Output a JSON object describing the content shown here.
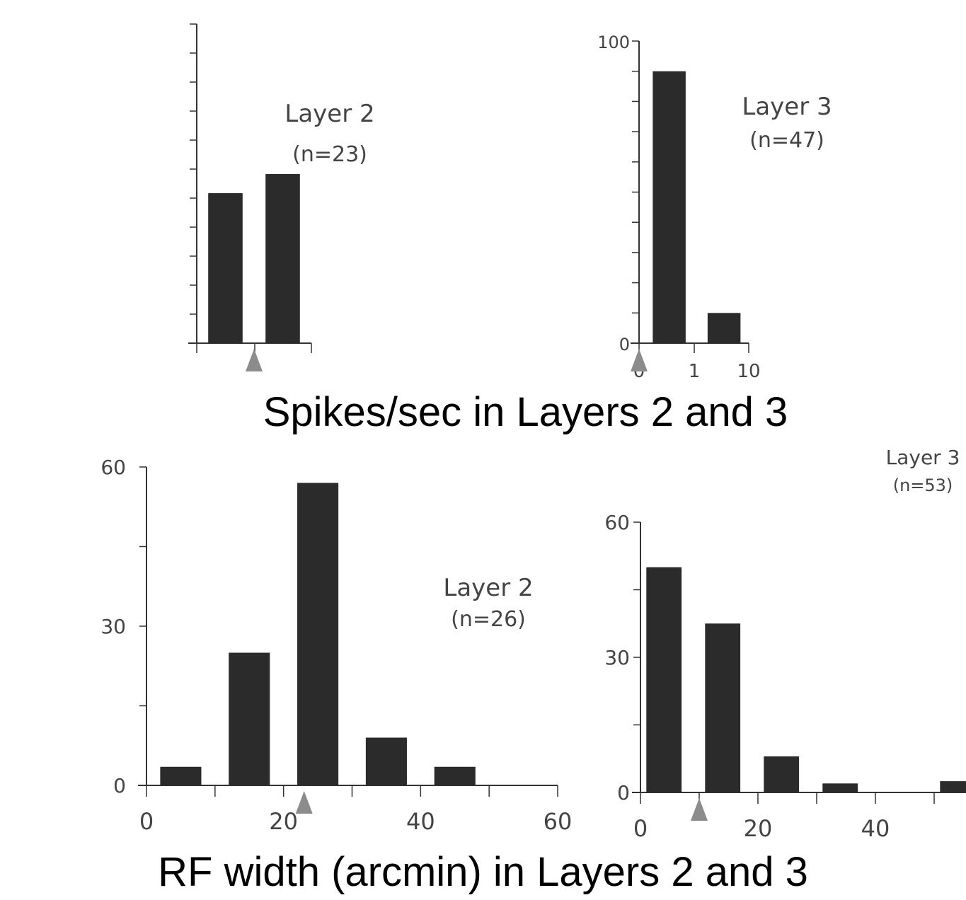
{
  "titles": {
    "top": "Spikes/sec in Layers 2 and 3",
    "bottom": "RF width (arcmin) in Layers 2 and 3"
  },
  "colors": {
    "bar": "#2b2b2b",
    "axis": "#333333",
    "marker": "#8c8c8c",
    "label": "#444444"
  },
  "chart_data": [
    {
      "type": "bar",
      "panel": "top-left",
      "title": "Layer 2",
      "subtitle": "(n=23)",
      "xlabel": "",
      "ylabel": "",
      "ylim": [
        0,
        10
      ],
      "yticks": [],
      "xticks": [],
      "bars": [
        {
          "x0": 0.2,
          "x1": 0.8,
          "value": 4.7
        },
        {
          "x0": 1.2,
          "x1": 1.8,
          "value": 5.3
        }
      ],
      "xlim": [
        0,
        2
      ],
      "marker": 1.0
    },
    {
      "type": "bar",
      "panel": "top-right",
      "title": "Layer 3",
      "subtitle": "(n=47)",
      "xlabel": "",
      "ylabel": "",
      "ylim": [
        0,
        100
      ],
      "yticks": [
        "0",
        "100"
      ],
      "xticks": [
        "0",
        "1",
        "10"
      ],
      "bars": [
        {
          "x0": 0.25,
          "x1": 0.85,
          "value": 90
        },
        {
          "x0": 1.25,
          "x1": 1.85,
          "value": 10
        }
      ],
      "xlim": [
        0,
        2
      ],
      "marker": 0.0
    },
    {
      "type": "bar",
      "panel": "bottom-left",
      "title": "Layer 2",
      "subtitle": "(n=26)",
      "xlabel": "",
      "ylabel": "",
      "ylim": [
        0,
        60
      ],
      "xlim": [
        0,
        60
      ],
      "yticks": [
        "0",
        "30",
        "60"
      ],
      "xticks": [
        "0",
        "20",
        "40",
        "60"
      ],
      "bars": [
        {
          "x0": 2,
          "x1": 8,
          "value": 3.5
        },
        {
          "x0": 12,
          "x1": 18,
          "value": 25
        },
        {
          "x0": 22,
          "x1": 28,
          "value": 57
        },
        {
          "x0": 32,
          "x1": 38,
          "value": 9
        },
        {
          "x0": 42,
          "x1": 48,
          "value": 3.5
        }
      ],
      "marker": 23
    },
    {
      "type": "bar",
      "panel": "bottom-right",
      "title": "Layer 3",
      "subtitle": "(n=53)",
      "xlabel": "",
      "ylabel": "",
      "ylim": [
        0,
        60
      ],
      "xlim": [
        0,
        50
      ],
      "yticks": [
        "0",
        "30",
        "60"
      ],
      "xticks": [
        "0",
        "20",
        "40"
      ],
      "bars": [
        {
          "x0": 1,
          "x1": 7,
          "value": 50
        },
        {
          "x0": 11,
          "x1": 17,
          "value": 37.5
        },
        {
          "x0": 21,
          "x1": 27,
          "value": 8
        },
        {
          "x0": 31,
          "x1": 37,
          "value": 2
        },
        {
          "x0": 51,
          "x1": 57,
          "value": 2.5
        }
      ],
      "marker": 10
    }
  ]
}
